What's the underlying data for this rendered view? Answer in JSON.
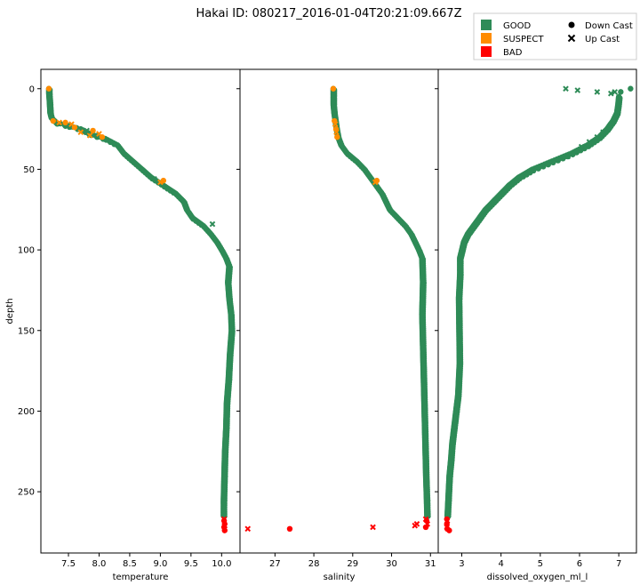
{
  "title": "Hakai ID: 080217_2016-01-04T20:21:09.667Z",
  "legend": {
    "placement": "top-right",
    "flag_items": [
      {
        "label": "GOOD",
        "color": "#2e8b57",
        "marker": "square"
      },
      {
        "label": "SUSPECT",
        "color": "#ff8c00",
        "marker": "square"
      },
      {
        "label": "BAD",
        "color": "#ff0000",
        "marker": "square"
      }
    ],
    "cast_items": [
      {
        "label": "Down Cast",
        "marker": "circle"
      },
      {
        "label": "Up Cast",
        "marker": "x"
      }
    ]
  },
  "colors": {
    "GOOD": "#2e8b57",
    "SUSPECT": "#ff8c00",
    "BAD": "#ff0000"
  },
  "chart_data": [
    {
      "type": "scatter",
      "xlabel": "temperature",
      "ylabel": "depth",
      "xlim": [
        7.05,
        10.3
      ],
      "ylim": [
        288,
        -12
      ],
      "xticks": [
        7.5,
        8.0,
        8.5,
        9.0,
        9.5,
        10.0
      ],
      "xtick_labels": [
        "7.5",
        "8.0",
        "8.5",
        "9.0",
        "9.5",
        "10.0"
      ],
      "yticks": [
        0,
        50,
        100,
        150,
        200,
        250
      ],
      "ytick_labels": [
        "0",
        "50",
        "100",
        "150",
        "200",
        "250"
      ],
      "profile": [
        [
          7.18,
          0
        ],
        [
          7.18,
          3
        ],
        [
          7.19,
          8
        ],
        [
          7.2,
          15
        ],
        [
          7.22,
          18
        ],
        [
          7.3,
          21
        ],
        [
          7.5,
          23
        ],
        [
          7.7,
          25
        ],
        [
          7.85,
          28
        ],
        [
          8.1,
          31
        ],
        [
          8.3,
          35
        ],
        [
          8.4,
          40
        ],
        [
          8.55,
          45
        ],
        [
          8.7,
          50
        ],
        [
          8.85,
          55
        ],
        [
          9.05,
          60
        ],
        [
          9.25,
          65
        ],
        [
          9.38,
          70
        ],
        [
          9.43,
          75
        ],
        [
          9.52,
          80
        ],
        [
          9.7,
          85
        ],
        [
          9.82,
          90
        ],
        [
          9.92,
          95
        ],
        [
          10.0,
          100
        ],
        [
          10.07,
          105
        ],
        [
          10.12,
          110
        ],
        [
          10.1,
          120
        ],
        [
          10.12,
          130
        ],
        [
          10.15,
          140
        ],
        [
          10.16,
          150
        ],
        [
          10.13,
          165
        ],
        [
          10.11,
          180
        ],
        [
          10.08,
          195
        ],
        [
          10.07,
          210
        ],
        [
          10.05,
          225
        ],
        [
          10.04,
          240
        ],
        [
          10.03,
          255
        ],
        [
          10.03,
          265
        ]
      ],
      "flag_points": [
        {
          "flag": "SUSPECT",
          "cast": "down",
          "points": [
            [
              7.18,
              0
            ],
            [
              7.25,
              20
            ],
            [
              7.45,
              21
            ],
            [
              7.6,
              24
            ],
            [
              7.9,
              26
            ],
            [
              8.05,
              30
            ],
            [
              9.05,
              57
            ]
          ]
        },
        {
          "flag": "SUSPECT",
          "cast": "up",
          "points": [
            [
              7.35,
              21
            ],
            [
              7.55,
              22
            ],
            [
              7.7,
              27
            ],
            [
              7.85,
              29
            ],
            [
              8.0,
              28
            ],
            [
              9.0,
              58
            ]
          ]
        },
        {
          "flag": "GOOD",
          "cast": "up",
          "points": [
            [
              7.8,
              26
            ],
            [
              8.9,
              56
            ],
            [
              9.85,
              84
            ]
          ]
        },
        {
          "flag": "BAD",
          "cast": "down",
          "points": [
            [
              10.04,
              268
            ],
            [
              10.05,
              270
            ],
            [
              10.04,
              272
            ],
            [
              10.05,
              274
            ]
          ]
        },
        {
          "flag": "BAD",
          "cast": "up",
          "points": [
            [
              10.04,
              267
            ],
            [
              10.05,
              271
            ]
          ]
        }
      ]
    },
    {
      "type": "scatter",
      "xlabel": "salinity",
      "xlim": [
        26.1,
        31.2
      ],
      "ylim": [
        288,
        -12
      ],
      "xticks": [
        27,
        28,
        29,
        30,
        31
      ],
      "xtick_labels": [
        "27",
        "28",
        "29",
        "30",
        "31"
      ],
      "yticks": [
        0,
        50,
        100,
        150,
        200,
        250
      ],
      "profile": [
        [
          28.5,
          0
        ],
        [
          28.5,
          5
        ],
        [
          28.5,
          10
        ],
        [
          28.52,
          15
        ],
        [
          28.55,
          20
        ],
        [
          28.58,
          25
        ],
        [
          28.62,
          30
        ],
        [
          28.7,
          35
        ],
        [
          28.85,
          40
        ],
        [
          29.1,
          45
        ],
        [
          29.3,
          50
        ],
        [
          29.45,
          55
        ],
        [
          29.6,
          60
        ],
        [
          29.75,
          65
        ],
        [
          29.85,
          70
        ],
        [
          29.95,
          75
        ],
        [
          30.15,
          80
        ],
        [
          30.35,
          85
        ],
        [
          30.5,
          90
        ],
        [
          30.6,
          95
        ],
        [
          30.7,
          100
        ],
        [
          30.78,
          105
        ],
        [
          30.8,
          120
        ],
        [
          30.78,
          140
        ],
        [
          30.8,
          160
        ],
        [
          30.82,
          180
        ],
        [
          30.84,
          200
        ],
        [
          30.86,
          220
        ],
        [
          30.88,
          240
        ],
        [
          30.9,
          255
        ],
        [
          30.91,
          265
        ]
      ],
      "flag_points": [
        {
          "flag": "SUSPECT",
          "cast": "down",
          "points": [
            [
              28.5,
              0
            ],
            [
              28.53,
              20
            ],
            [
              28.57,
              25
            ],
            [
              28.6,
              30
            ],
            [
              29.62,
              57
            ]
          ]
        },
        {
          "flag": "SUSPECT",
          "cast": "up",
          "points": [
            [
              28.55,
              22
            ],
            [
              28.58,
              27
            ],
            [
              29.58,
              58
            ]
          ]
        },
        {
          "flag": "BAD",
          "cast": "down",
          "points": [
            [
              27.38,
              273
            ],
            [
              30.88,
              272
            ],
            [
              30.9,
              268
            ]
          ]
        },
        {
          "flag": "BAD",
          "cast": "up",
          "points": [
            [
              26.3,
              273
            ],
            [
              29.52,
              272
            ],
            [
              30.6,
              271
            ],
            [
              30.65,
              270
            ],
            [
              30.88,
              267
            ],
            [
              30.92,
              270
            ]
          ]
        }
      ]
    },
    {
      "type": "scatter",
      "xlabel": "dissolved_oxygen_ml_l",
      "xlim": [
        2.4,
        7.45
      ],
      "ylim": [
        288,
        -12
      ],
      "xticks": [
        3,
        4,
        5,
        6,
        7
      ],
      "xtick_labels": [
        "3",
        "4",
        "5",
        "6",
        "7"
      ],
      "yticks": [
        0,
        50,
        100,
        150,
        200,
        250
      ],
      "profile": [
        [
          7.0,
          5
        ],
        [
          6.98,
          10
        ],
        [
          6.95,
          15
        ],
        [
          6.85,
          20
        ],
        [
          6.7,
          25
        ],
        [
          6.5,
          30
        ],
        [
          6.2,
          35
        ],
        [
          5.8,
          40
        ],
        [
          5.3,
          45
        ],
        [
          4.8,
          50
        ],
        [
          4.45,
          55
        ],
        [
          4.2,
          60
        ],
        [
          4.0,
          65
        ],
        [
          3.8,
          70
        ],
        [
          3.6,
          75
        ],
        [
          3.45,
          80
        ],
        [
          3.3,
          85
        ],
        [
          3.15,
          90
        ],
        [
          3.05,
          95
        ],
        [
          3.0,
          100
        ],
        [
          2.95,
          105
        ],
        [
          2.95,
          115
        ],
        [
          2.92,
          130
        ],
        [
          2.93,
          150
        ],
        [
          2.94,
          170
        ],
        [
          2.9,
          190
        ],
        [
          2.85,
          200
        ],
        [
          2.8,
          210
        ],
        [
          2.75,
          220
        ],
        [
          2.72,
          230
        ],
        [
          2.68,
          240
        ],
        [
          2.65,
          255
        ],
        [
          2.63,
          265
        ]
      ],
      "flag_points": [
        {
          "flag": "GOOD",
          "cast": "down",
          "points": [
            [
              7.3,
              0
            ],
            [
              7.05,
              2
            ]
          ]
        },
        {
          "flag": "GOOD",
          "cast": "up",
          "points": [
            [
              5.65,
              0
            ],
            [
              5.95,
              1
            ],
            [
              6.45,
              2
            ],
            [
              6.8,
              3
            ],
            [
              6.9,
              2
            ],
            [
              5.7,
              42
            ],
            [
              6.05,
              36
            ],
            [
              6.25,
              33
            ],
            [
              6.45,
              30
            ],
            [
              6.6,
              27
            ]
          ]
        },
        {
          "flag": "BAD",
          "cast": "down",
          "points": [
            [
              2.62,
              267
            ],
            [
              2.62,
              270
            ],
            [
              2.63,
              273
            ],
            [
              2.68,
              274
            ]
          ]
        },
        {
          "flag": "BAD",
          "cast": "up",
          "points": [
            [
              2.63,
              268
            ],
            [
              2.62,
              272
            ]
          ]
        }
      ]
    }
  ]
}
